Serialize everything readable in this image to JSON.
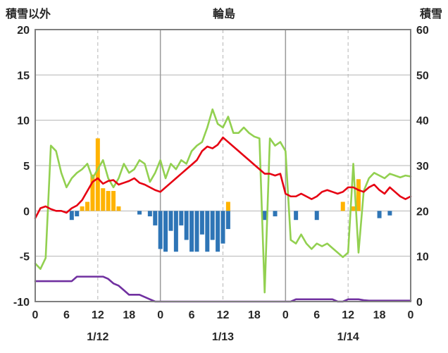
{
  "page": {
    "background": "#ffffff"
  },
  "chart_data": {
    "type": "line",
    "title": "輪島",
    "left_axis": {
      "label": "積雪以外",
      "min": -10,
      "max": 20,
      "ticks": [
        20,
        15,
        10,
        5,
        0,
        -5,
        -10
      ]
    },
    "right_axis": {
      "label": "積雪",
      "min": 0,
      "max": 60,
      "ticks": [
        60,
        50,
        40,
        30,
        20,
        10,
        0
      ]
    },
    "x_axis": {
      "hours_total": 72,
      "tick_interval": 6,
      "tick_labels": [
        "0",
        "6",
        "12",
        "18",
        "0",
        "6",
        "12",
        "18",
        "0",
        "6",
        "12",
        "18",
        "0"
      ],
      "date_labels": [
        {
          "label": "1/12",
          "hour": 12
        },
        {
          "label": "1/13",
          "hour": 36
        },
        {
          "label": "1/14",
          "hour": 60
        }
      ],
      "grid_dashed_hours": [
        12,
        36,
        60
      ],
      "grid_solid_hours": [
        24,
        48
      ]
    },
    "colors": {
      "grid": "#b5b5b5",
      "grid_day": "#9a9a9a",
      "frame": "#7f7f7f",
      "text": "#262626",
      "red": "#e60012",
      "green": "#92d050",
      "purple": "#7030a0",
      "orange": "#ffb300",
      "blue": "#2e75b6"
    },
    "series": [
      {
        "name": "orange-precip-bars",
        "type": "bar",
        "axis": "left",
        "color": "#ffb300",
        "points": [
          {
            "hour": 9,
            "value": 0.5
          },
          {
            "hour": 10,
            "value": 1.0
          },
          {
            "hour": 11,
            "value": 4.0
          },
          {
            "hour": 12,
            "value": 8.0
          },
          {
            "hour": 13,
            "value": 2.5
          },
          {
            "hour": 14,
            "value": 2.2
          },
          {
            "hour": 15,
            "value": 2.2
          },
          {
            "hour": 16,
            "value": 0.5
          },
          {
            "hour": 37,
            "value": 1.0
          },
          {
            "hour": 59,
            "value": 1.0
          },
          {
            "hour": 61,
            "value": 0.5
          },
          {
            "hour": 62,
            "value": 3.5
          }
        ]
      },
      {
        "name": "blue-negative-bars",
        "type": "bar",
        "axis": "left",
        "color": "#2e75b6",
        "points": [
          {
            "hour": 7,
            "value": -1.0
          },
          {
            "hour": 8,
            "value": -0.6
          },
          {
            "hour": 20,
            "value": -0.4
          },
          {
            "hour": 22,
            "value": -0.6
          },
          {
            "hour": 23,
            "value": -1.6
          },
          {
            "hour": 24,
            "value": -4.2
          },
          {
            "hour": 25,
            "value": -4.5
          },
          {
            "hour": 26,
            "value": -2.2
          },
          {
            "hour": 27,
            "value": -4.5
          },
          {
            "hour": 28,
            "value": -1.6
          },
          {
            "hour": 29,
            "value": -3.2
          },
          {
            "hour": 30,
            "value": -4.5
          },
          {
            "hour": 31,
            "value": -4.5
          },
          {
            "hour": 32,
            "value": -2.6
          },
          {
            "hour": 33,
            "value": -4.5
          },
          {
            "hour": 34,
            "value": -3.2
          },
          {
            "hour": 35,
            "value": -4.5
          },
          {
            "hour": 36,
            "value": -3.6
          },
          {
            "hour": 37,
            "value": -2.0
          },
          {
            "hour": 44,
            "value": -1.0
          },
          {
            "hour": 46,
            "value": -0.6
          },
          {
            "hour": 50,
            "value": -1.0
          },
          {
            "hour": 54,
            "value": -1.0
          },
          {
            "hour": 66,
            "value": -0.8
          },
          {
            "hour": 68,
            "value": -0.5
          }
        ]
      },
      {
        "name": "green-line",
        "type": "line",
        "axis": "left",
        "color": "#92d050",
        "values": [
          -5.8,
          -6.4,
          -5.2,
          7.2,
          6.6,
          4.2,
          2.6,
          3.6,
          4.2,
          4.6,
          5.2,
          3.6,
          4.6,
          5.6,
          3.6,
          2.6,
          3.6,
          5.2,
          4.2,
          4.6,
          5.6,
          5.2,
          3.2,
          4.2,
          5.6,
          3.6,
          5.2,
          4.6,
          5.6,
          5.2,
          6.6,
          7.2,
          7.6,
          9.2,
          11.2,
          9.6,
          9.2,
          10.4,
          8.6,
          8.6,
          9.2,
          8.6,
          8.2,
          8.0,
          -9.0,
          8.0,
          7.2,
          7.6,
          6.6,
          -3.2,
          -3.6,
          -2.6,
          -3.6,
          -4.2,
          -3.6,
          -3.9,
          -3.6,
          -4.1,
          -4.6,
          -5.1,
          -4.6,
          5.2,
          -4.6,
          2.2,
          3.6,
          4.2,
          3.9,
          3.6,
          4.1,
          3.9,
          3.7,
          3.9,
          3.8
        ]
      },
      {
        "name": "red-temperature-line",
        "type": "line",
        "axis": "left",
        "color": "#e60012",
        "values": [
          -0.8,
          0.3,
          0.5,
          0.2,
          0.0,
          0.0,
          -0.2,
          0.3,
          0.6,
          1.2,
          2.2,
          3.2,
          3.6,
          3.0,
          3.3,
          3.4,
          2.9,
          3.1,
          3.3,
          3.6,
          3.1,
          2.9,
          2.6,
          2.3,
          2.1,
          2.6,
          3.1,
          3.6,
          4.1,
          4.6,
          5.1,
          5.6,
          6.6,
          7.1,
          6.9,
          7.3,
          8.1,
          7.6,
          7.1,
          6.6,
          6.1,
          5.6,
          5.1,
          4.6,
          4.1,
          4.1,
          3.9,
          4.1,
          1.9,
          1.6,
          1.6,
          1.9,
          1.6,
          1.3,
          1.6,
          2.1,
          2.3,
          2.1,
          1.9,
          2.1,
          2.6,
          2.6,
          2.3,
          2.1,
          2.6,
          2.9,
          2.3,
          1.9,
          2.6,
          2.1,
          1.6,
          1.3,
          1.6
        ]
      },
      {
        "name": "purple-snow-depth-line",
        "type": "line",
        "axis": "right",
        "color": "#7030a0",
        "values": [
          4.5,
          4.5,
          4.5,
          4.5,
          4.5,
          4.5,
          4.5,
          4.5,
          5.5,
          5.5,
          5.5,
          5.5,
          5.5,
          5.5,
          5.0,
          4.0,
          3.5,
          2.5,
          1.5,
          1.5,
          1.5,
          1.0,
          0.5,
          0.0,
          0,
          0,
          0,
          0,
          0,
          0,
          0,
          0,
          0,
          0,
          0,
          0,
          0,
          0,
          0,
          0,
          0,
          0,
          0,
          0,
          0,
          0,
          0,
          0,
          0,
          0,
          0.5,
          0.5,
          0.5,
          0.5,
          0.5,
          0.5,
          0.5,
          0.5,
          0.0,
          0.0,
          0.5,
          0.5,
          0.5,
          0.3,
          0.2,
          0.2,
          0.2,
          0.2,
          0.2,
          0.2,
          0.2,
          0.2,
          0.2
        ]
      }
    ]
  }
}
